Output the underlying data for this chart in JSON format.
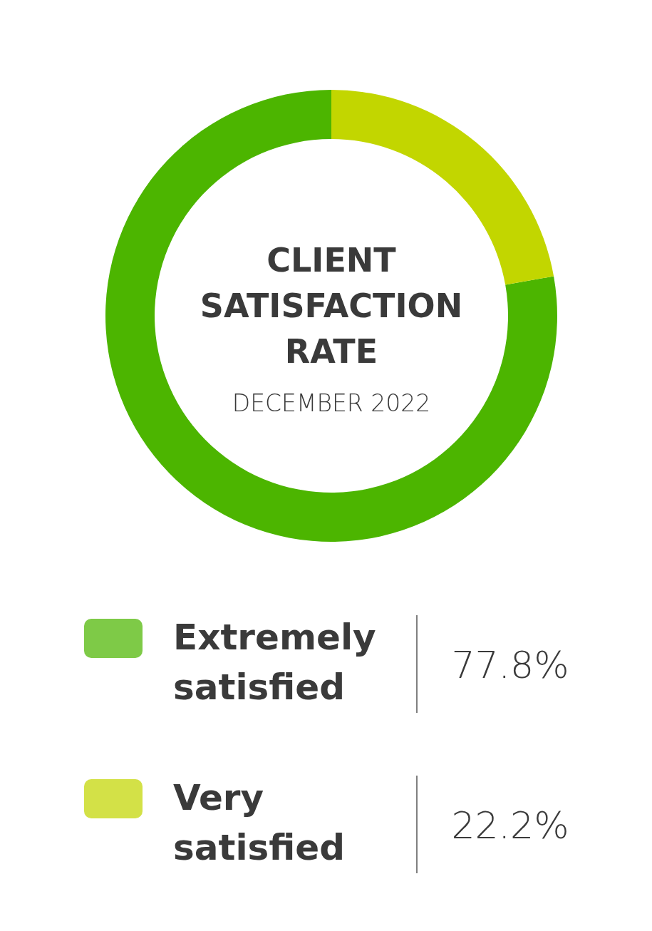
{
  "chart_data": {
    "type": "donut",
    "title": "CLIENT SATISFACTION RATE",
    "subtitle": "DECEMBER 2022",
    "categories": [
      "Extremely satisfied",
      "Very satisfied"
    ],
    "values": [
      77.8,
      22.2
    ],
    "colors": [
      "#4cb500",
      "#c2d600"
    ],
    "value_labels": [
      "77.8%",
      "22.2%"
    ],
    "legend": "bottom"
  }
}
